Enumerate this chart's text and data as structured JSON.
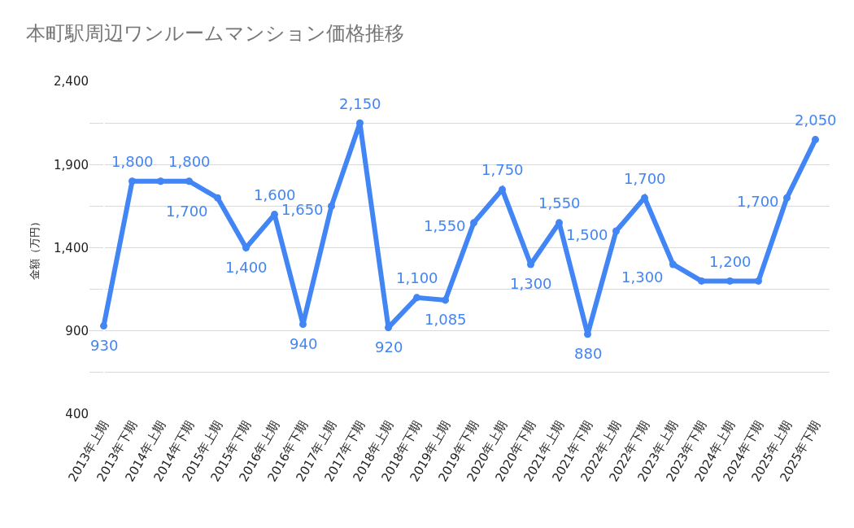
{
  "chart_data": {
    "type": "line",
    "title": "本町駅周辺ワンルームマンション価格推移",
    "ylabel": "金額（万円）",
    "categories": [
      "2013年上期",
      "2013年下期",
      "2014年上期",
      "2014年下期",
      "2015年上期",
      "2015年下期",
      "2016年上期",
      "2016年下期",
      "2017年上期",
      "2017年下期",
      "2018年上期",
      "2018年下期",
      "2019年上期",
      "2019年下期",
      "2020年上期",
      "2020年下期",
      "2021年上期",
      "2021年下期",
      "2022年上期",
      "2022年下期",
      "2023年上期",
      "2023年下期",
      "2024年上期",
      "2024年下期",
      "2025年上期",
      "2025年下期"
    ],
    "series": [
      {
        "color": "#4285f4",
        "values": [
          930,
          1800,
          1800,
          1800,
          1700,
          1400,
          1600,
          940,
          1650,
          2150,
          920,
          1100,
          1085,
          1550,
          1750,
          1300,
          1550,
          880,
          1500,
          1700,
          1300,
          1200,
          1200,
          1200,
          1700,
          2050
        ],
        "value_labels": [
          "930",
          "1,800",
          null,
          "1,800",
          "1,700",
          "1,400",
          "1,600",
          "940",
          "1,650",
          "2,150",
          "920",
          "1,100",
          "1,085",
          "1,550",
          "1,750",
          "1,300",
          "1,550",
          "880",
          "1,500",
          "1,700",
          "1,300",
          null,
          "1,200",
          null,
          "1,700",
          "2,050"
        ]
      }
    ],
    "ylim": [
      400,
      2400
    ],
    "yticks": [
      400,
      {
        "value": 650,
        "label": null
      },
      900,
      {
        "value": 1150,
        "label": null
      },
      {
        "value": 1400,
        "label": "1,400"
      },
      {
        "value": 1650,
        "label": null
      },
      {
        "value": 1900,
        "label": "1,900"
      },
      {
        "value": 2150,
        "label": null
      },
      {
        "value": 2400,
        "label": "2,400"
      }
    ],
    "grid": "y",
    "marker": "circle",
    "line_style": "solid"
  }
}
